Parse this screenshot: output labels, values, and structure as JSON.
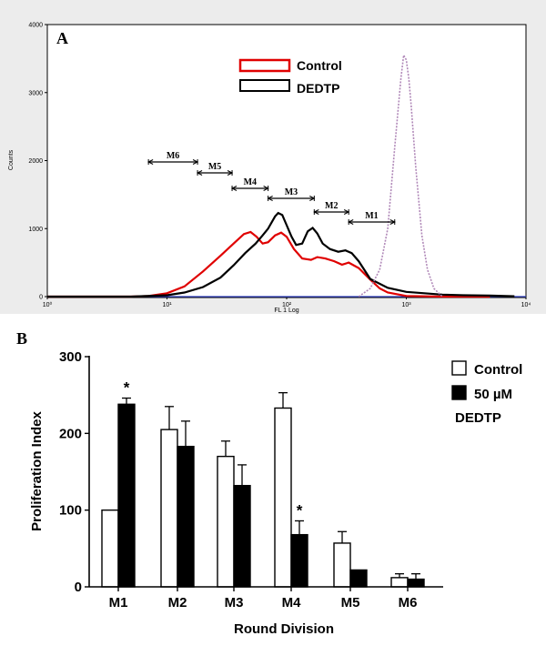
{
  "chart_data": [
    {
      "panel": "A",
      "type": "line",
      "xscale": "log",
      "xlim": [
        1,
        10000
      ],
      "ylim": [
        0,
        4000
      ],
      "xlabel": "FL 1 Log",
      "ylabel": "Counts",
      "x_ticks": [
        "10⁰",
        "10¹",
        "10²",
        "10³",
        "10⁴"
      ],
      "y_ticks": [
        "0",
        "1000",
        "2000",
        "3000",
        "4000"
      ],
      "legend": [
        "Control",
        "DEDTP"
      ],
      "legend_position": "top-center",
      "series": [
        {
          "name": "Control",
          "color": "#e00000",
          "x": [
            1,
            3,
            5,
            7,
            10,
            14,
            20,
            28,
            36,
            44,
            50,
            56,
            63,
            70,
            80,
            90,
            100,
            115,
            135,
            160,
            180,
            210,
            250,
            290,
            330,
            400,
            500,
            600,
            700,
            1000,
            2000,
            5000
          ],
          "y": [
            0,
            0,
            0,
            10,
            50,
            150,
            370,
            600,
            780,
            920,
            950,
            880,
            780,
            800,
            900,
            940,
            880,
            700,
            560,
            540,
            580,
            560,
            520,
            470,
            500,
            420,
            250,
            120,
            60,
            10,
            0,
            0
          ]
        },
        {
          "name": "DEDTP",
          "color": "#000000",
          "x": [
            1,
            5,
            10,
            14,
            20,
            28,
            36,
            45,
            55,
            63,
            70,
            80,
            85,
            92,
            100,
            110,
            120,
            135,
            150,
            165,
            180,
            200,
            230,
            270,
            310,
            350,
            400,
            500,
            700,
            1000,
            2000,
            3000,
            5000,
            8000
          ],
          "y": [
            0,
            0,
            20,
            60,
            140,
            280,
            460,
            640,
            780,
            900,
            1000,
            1180,
            1230,
            1200,
            1050,
            880,
            760,
            780,
            960,
            1010,
            930,
            780,
            700,
            660,
            680,
            640,
            520,
            260,
            130,
            70,
            30,
            20,
            15,
            5
          ]
        },
        {
          "name": "",
          "color": "#b088b8",
          "x": [
            400,
            500,
            600,
            700,
            800,
            900,
            950,
            1000,
            1050,
            1100,
            1200,
            1350,
            1500,
            1700,
            2000
          ],
          "y": [
            0,
            120,
            400,
            1000,
            2200,
            3200,
            3550,
            3480,
            3200,
            2800,
            1900,
            900,
            400,
            120,
            0
          ]
        }
      ],
      "markers": [
        {
          "label": "M6",
          "from": 7,
          "to": 18
        },
        {
          "label": "M5",
          "from": 18,
          "to": 35
        },
        {
          "label": "M4",
          "from": 35,
          "to": 70
        },
        {
          "label": "M3",
          "from": 70,
          "to": 170
        },
        {
          "label": "M2",
          "from": 170,
          "to": 330
        },
        {
          "label": "M1",
          "from": 330,
          "to": 800
        }
      ]
    },
    {
      "panel": "B",
      "type": "bar",
      "categories": [
        "M1",
        "M2",
        "M3",
        "M4",
        "M5",
        "M6"
      ],
      "xlabel": "Round Division",
      "ylabel": "Proliferation Index",
      "ylim": [
        0,
        300
      ],
      "y_ticks": [
        "0",
        "100",
        "200",
        "300"
      ],
      "legend": [
        "Control",
        "50 µM DEDTP"
      ],
      "legend_position": "top-right",
      "series": [
        {
          "name": "Control",
          "fill": "#ffffff",
          "values": [
            100,
            205,
            170,
            233,
            57,
            12
          ],
          "errors": [
            0,
            30,
            20,
            20,
            15,
            5
          ]
        },
        {
          "name": "50 µM DEDTP",
          "fill": "#000000",
          "values": [
            238,
            183,
            132,
            68,
            22,
            10
          ],
          "errors": [
            8,
            33,
            27,
            18,
            0,
            7
          ]
        }
      ],
      "significance": [
        {
          "category": "M1",
          "series": "50 µM DEDTP",
          "mark": "*"
        },
        {
          "category": "M4",
          "series": "50 µM DEDTP",
          "mark": "*"
        }
      ]
    }
  ],
  "panel_labels": {
    "a": "A",
    "b": "B"
  },
  "legend_b": {
    "control": "Control",
    "treat_line1": "50 µM",
    "treat_line2": "DEDTP"
  }
}
